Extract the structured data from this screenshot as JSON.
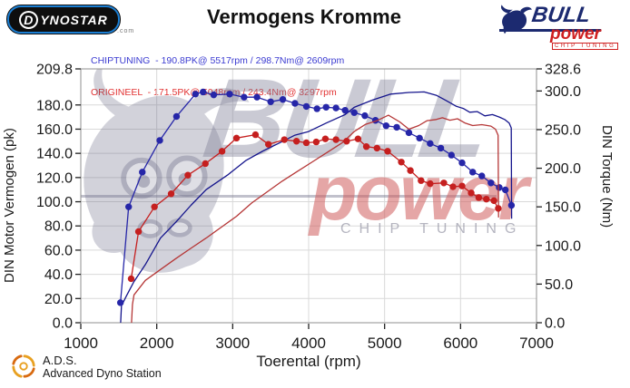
{
  "header": {
    "dynostar_logo_text": "YNOSTAR",
    "dynostar_logo_d": "D",
    "dynostar_logo_suffix": ".com",
    "title": "Vermogens Kromme",
    "legend": [
      {
        "label": "CHIPTUNING  - 190.8PK@ 5517rpm / 298.7Nm@ 2609rpm",
        "color": "#3b3bd1"
      },
      {
        "label": "ORIGINEEL  - 171.5PK@ 5048rpm / 243.4Nm@ 3297rpm",
        "color": "#e23333"
      }
    ],
    "bull_logo": {
      "bull": "BULL",
      "power": "power",
      "chip": "CHIP TUNING"
    }
  },
  "watermark": {
    "bull": "BULL",
    "power": "power",
    "chip": "CHIP TUNING"
  },
  "footer": {
    "ads_abbr": "A.D.S.",
    "ads_name": "Advanced Dyno Station"
  },
  "chart_data": {
    "type": "line",
    "title": "Vermogens Kromme",
    "xlabel": "Toerental (rpm)",
    "ylabel_left": "DIN Motor Vermogen (pk)",
    "ylabel_right": "DIN Torque (Nm)",
    "x_range": [
      1000,
      7000
    ],
    "y_left_range": [
      0,
      209.8
    ],
    "y_right_range": [
      0,
      328.6
    ],
    "x_ticks": [
      1000,
      2000,
      3000,
      4000,
      5000,
      6000,
      7000
    ],
    "y_left_ticks": [
      0,
      20,
      40,
      60,
      80,
      100,
      120,
      140,
      160,
      180,
      209.8
    ],
    "y_right_ticks": [
      0,
      50,
      100,
      150,
      200,
      250,
      300,
      328.6
    ],
    "grid": true,
    "legend_position": "top-left",
    "series": [
      {
        "name": "CHIPTUNING vermogen (pk)",
        "axis": "left",
        "color": "#14148c",
        "markers": false,
        "points": [
          [
            1525,
            0
          ],
          [
            1535,
            14
          ],
          [
            1600,
            22
          ],
          [
            1700,
            34
          ],
          [
            1850,
            48
          ],
          [
            2050,
            70
          ],
          [
            2250,
            83
          ],
          [
            2450,
            97
          ],
          [
            2650,
            110
          ],
          [
            2930,
            122
          ],
          [
            3170,
            134
          ],
          [
            3400,
            142
          ],
          [
            3660,
            150
          ],
          [
            3820,
            155
          ],
          [
            4000,
            158
          ],
          [
            4230,
            165
          ],
          [
            4480,
            172
          ],
          [
            4600,
            178
          ],
          [
            4840,
            184
          ],
          [
            5080,
            189
          ],
          [
            5320,
            190.3
          ],
          [
            5520,
            190.8
          ],
          [
            5680,
            188
          ],
          [
            5800,
            184
          ],
          [
            5940,
            179
          ],
          [
            6040,
            177
          ],
          [
            6120,
            174
          ],
          [
            6220,
            174.5
          ],
          [
            6320,
            171
          ],
          [
            6420,
            172
          ],
          [
            6510,
            170
          ],
          [
            6580,
            168
          ],
          [
            6640,
            165
          ],
          [
            6668,
            161
          ],
          [
            6672,
            86
          ]
        ]
      },
      {
        "name": "CHIPTUNING koppel (Nm)",
        "axis": "right",
        "color": "#2626a8",
        "markers": true,
        "points": [
          [
            1522,
            26
          ],
          [
            1630,
            150
          ],
          [
            1810,
            195
          ],
          [
            2040,
            236
          ],
          [
            2260,
            267
          ],
          [
            2510,
            296
          ],
          [
            2610,
            298.7
          ],
          [
            2750,
            295
          ],
          [
            2960,
            296
          ],
          [
            3150,
            292
          ],
          [
            3320,
            292
          ],
          [
            3500,
            286
          ],
          [
            3660,
            289
          ],
          [
            3820,
            284
          ],
          [
            3970,
            280
          ],
          [
            4110,
            277
          ],
          [
            4230,
            279
          ],
          [
            4360,
            278
          ],
          [
            4480,
            275
          ],
          [
            4600,
            272
          ],
          [
            4740,
            268
          ],
          [
            4880,
            262
          ],
          [
            5020,
            255
          ],
          [
            5160,
            253
          ],
          [
            5320,
            246
          ],
          [
            5460,
            239
          ],
          [
            5600,
            232
          ],
          [
            5740,
            226
          ],
          [
            5880,
            217
          ],
          [
            6020,
            207
          ],
          [
            6160,
            195
          ],
          [
            6280,
            190
          ],
          [
            6400,
            181
          ],
          [
            6510,
            175
          ],
          [
            6590,
            172
          ],
          [
            6670,
            152
          ]
        ]
      },
      {
        "name": "ORIGINEEL vermogen (pk)",
        "axis": "left",
        "color": "#b53636",
        "markers": false,
        "points": [
          [
            1668,
            0
          ],
          [
            1680,
            15
          ],
          [
            1700,
            23
          ],
          [
            1850,
            35
          ],
          [
            2050,
            44
          ],
          [
            2250,
            53
          ],
          [
            2450,
            61.5
          ],
          [
            2650,
            70
          ],
          [
            2850,
            79
          ],
          [
            3050,
            88
          ],
          [
            3250,
            99
          ],
          [
            3450,
            108
          ],
          [
            3650,
            117
          ],
          [
            3850,
            125
          ],
          [
            4050,
            133
          ],
          [
            4250,
            141
          ],
          [
            4450,
            149
          ],
          [
            4600,
            158
          ],
          [
            4750,
            164
          ],
          [
            4900,
            167
          ],
          [
            5050,
            171.5
          ],
          [
            5200,
            166
          ],
          [
            5320,
            160
          ],
          [
            5450,
            163
          ],
          [
            5560,
            167
          ],
          [
            5680,
            168
          ],
          [
            5760,
            169.4
          ],
          [
            5860,
            167.4
          ],
          [
            5960,
            168.6
          ],
          [
            6060,
            165
          ],
          [
            6160,
            163
          ],
          [
            6280,
            163.7
          ],
          [
            6400,
            162.5
          ],
          [
            6460,
            160
          ],
          [
            6495,
            155
          ],
          [
            6500,
            87
          ]
        ]
      },
      {
        "name": "ORIGINEEL koppel (Nm)",
        "axis": "right",
        "color": "#c51f1f",
        "markers": true,
        "points": [
          [
            1663,
            57
          ],
          [
            1760,
            118
          ],
          [
            1970,
            150
          ],
          [
            2190,
            167
          ],
          [
            2410,
            191
          ],
          [
            2640,
            206
          ],
          [
            2860,
            222
          ],
          [
            3050,
            239
          ],
          [
            3300,
            243.4
          ],
          [
            3470,
            231
          ],
          [
            3680,
            237
          ],
          [
            3840,
            235
          ],
          [
            3970,
            233
          ],
          [
            4100,
            234
          ],
          [
            4220,
            238
          ],
          [
            4360,
            237
          ],
          [
            4500,
            235
          ],
          [
            4650,
            238
          ],
          [
            4760,
            228
          ],
          [
            4900,
            226
          ],
          [
            5040,
            222
          ],
          [
            5220,
            208
          ],
          [
            5340,
            197
          ],
          [
            5480,
            184
          ],
          [
            5600,
            180
          ],
          [
            5780,
            181
          ],
          [
            5900,
            176
          ],
          [
            6020,
            177
          ],
          [
            6140,
            168
          ],
          [
            6240,
            162
          ],
          [
            6340,
            160
          ],
          [
            6440,
            158
          ],
          [
            6497,
            148
          ]
        ]
      }
    ]
  }
}
